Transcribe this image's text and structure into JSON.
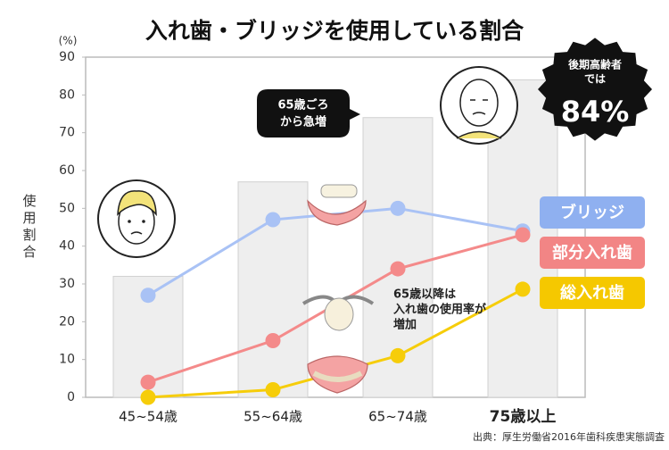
{
  "chart_data": {
    "type": "bar_line",
    "title": "入れ歯・ブリッジを使用している割合",
    "y_unit": "(%)",
    "y_label": "使用割合",
    "categories": [
      "45~54歳",
      "55~64歳",
      "65~74歳",
      "75歳以上"
    ],
    "emphasis_index": 3,
    "bars": {
      "values": [
        32,
        57,
        74,
        84
      ],
      "color": "#eeeeee"
    },
    "series": [
      {
        "name": "ブリッジ",
        "color": "#a9c2f5",
        "legend_color": "#8fb0f0",
        "values": [
          27,
          47,
          50,
          44
        ]
      },
      {
        "name": "部分入れ歯",
        "color": "#f48a8a",
        "legend_color": "#f28585",
        "values": [
          4,
          15,
          34,
          43
        ]
      },
      {
        "name": "総入れ歯",
        "color": "#f6cd0a",
        "legend_color": "#f5c800",
        "values": [
          0,
          2,
          11,
          28.6
        ]
      }
    ],
    "ylim": [
      0,
      90
    ],
    "yticks": [
      0,
      10,
      20,
      30,
      40,
      50,
      60,
      70,
      80,
      90
    ],
    "grid": false,
    "legend_position": "right",
    "annotations": {
      "bubble": [
        "65歳ごろ",
        "から急増"
      ],
      "note": [
        "65歳以降は",
        "入れ歯の使用率が",
        "増加"
      ],
      "badge": [
        "後期高齢者",
        "では"
      ],
      "badge_value": "84%"
    },
    "source": "出典：厚生労働省2016年歯科疾患実態調査"
  }
}
